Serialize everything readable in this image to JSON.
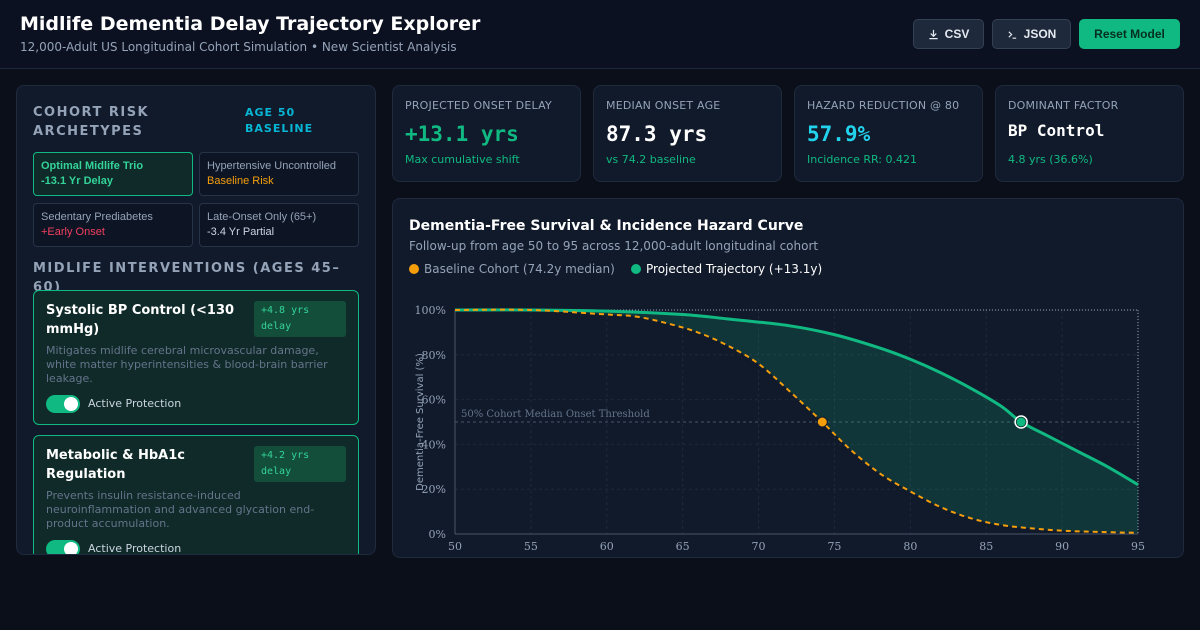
{
  "header": {
    "title": "Midlife Dementia Delay Trajectory Explorer",
    "subtitle": "12,000-Adult US Longitudinal Cohort Simulation • New Scientist Analysis",
    "csv_label": "CSV",
    "json_label": "JSON",
    "reset_label": "Reset Model"
  },
  "archetypes": {
    "title": "COHORT RISK ARCHETYPES",
    "badge": "AGE 50 BASELINE",
    "items": [
      {
        "name": "Optimal Midlife Trio",
        "effect": "-13.1 Yr Delay"
      },
      {
        "name": "Hypertensive Uncontrolled",
        "effect": "Baseline Risk"
      },
      {
        "name": "Sedentary Prediabetes",
        "effect": "+Early Onset"
      },
      {
        "name": "Late-Onset Only (65+)",
        "effect": "-3.4 Yr Partial"
      }
    ]
  },
  "interventions": {
    "title": "MIDLIFE INTERVENTIONS (AGES 45–60)",
    "items": [
      {
        "title": "Systolic BP Control (<130 mmHg)",
        "badge": "+4.8 yrs delay",
        "desc": "Mitigates midlife cerebral microvascular damage, white matter hyperintensities & blood-brain barrier leakage.",
        "toggle_label": "Active Protection"
      },
      {
        "title": "Metabolic & HbA1c Regulation",
        "badge": "+4.2 yrs delay",
        "desc": "Prevents insulin resistance-induced neuroinflammation and advanced glycation end-product accumulation.",
        "toggle_label": "Active Protection"
      }
    ]
  },
  "stats": [
    {
      "label": "PROJECTED ONSET DELAY",
      "value": "+13.1 yrs",
      "sub": "Max cumulative shift",
      "color": "#10b981"
    },
    {
      "label": "MEDIAN ONSET AGE",
      "value": "87.3 yrs",
      "sub": "vs 74.2 baseline",
      "color": "#ffffff"
    },
    {
      "label": "HAZARD REDUCTION @ 80",
      "value": "57.9%",
      "sub": "Incidence RR: 0.421",
      "color": "#22d3ee"
    },
    {
      "label": "DOMINANT FACTOR",
      "value": "BP Control",
      "sub": "4.8 yrs (36.6%)",
      "color": "#ffffff"
    }
  ],
  "chart": {
    "title": "Dementia-Free Survival & Incidence Hazard Curve",
    "subtitle": "Follow-up from age 50 to 95 across 12,000-adult longitudinal cohort",
    "legend_baseline": "Baseline Cohort (74.2y median)",
    "legend_projected": "Projected Trajectory (+13.1y)",
    "threshold_label": "50% Cohort Median Onset Threshold",
    "ylabel": "Dementia-Free Survival (%)",
    "baseline_color": "#f59e0b",
    "projected_color": "#10b981"
  },
  "chart_data": {
    "type": "line",
    "xlim": [
      50,
      95
    ],
    "ylim": [
      0,
      100
    ],
    "yticks": [
      "0%",
      "20%",
      "40%",
      "60%",
      "80%",
      "100%"
    ],
    "xticks": [
      50,
      55,
      60,
      65,
      70,
      75,
      80,
      85,
      90,
      95
    ],
    "series": [
      {
        "name": "Baseline Cohort (74.2y median)",
        "x": [
          50,
          55,
          60,
          62,
          64,
          66,
          68,
          70,
          72,
          74.2,
          76,
          78,
          80,
          82,
          84,
          86,
          88,
          90,
          92,
          95
        ],
        "values": [
          100,
          100,
          98,
          97,
          94,
          90,
          84,
          76,
          64,
          50,
          38,
          27,
          19,
          12,
          7,
          4,
          2.5,
          1.5,
          1,
          0.5
        ]
      },
      {
        "name": "Projected Trajectory (+13.1y)",
        "x": [
          50,
          55,
          60,
          65,
          68,
          72,
          75,
          78,
          80,
          82,
          84,
          86,
          87.3,
          89,
          91,
          93,
          95
        ],
        "values": [
          100,
          100,
          99.5,
          98,
          96,
          93,
          89,
          83,
          78,
          72,
          65,
          57,
          50,
          44,
          37,
          30,
          22
        ]
      }
    ],
    "markers": [
      {
        "series": "Baseline Cohort (74.2y median)",
        "x": 74.2,
        "y": 50
      },
      {
        "series": "Projected Trajectory (+13.1y)",
        "x": 87.3,
        "y": 50
      }
    ],
    "reference_line": {
      "y": 50,
      "label": "50% Cohort Median Onset Threshold"
    }
  }
}
